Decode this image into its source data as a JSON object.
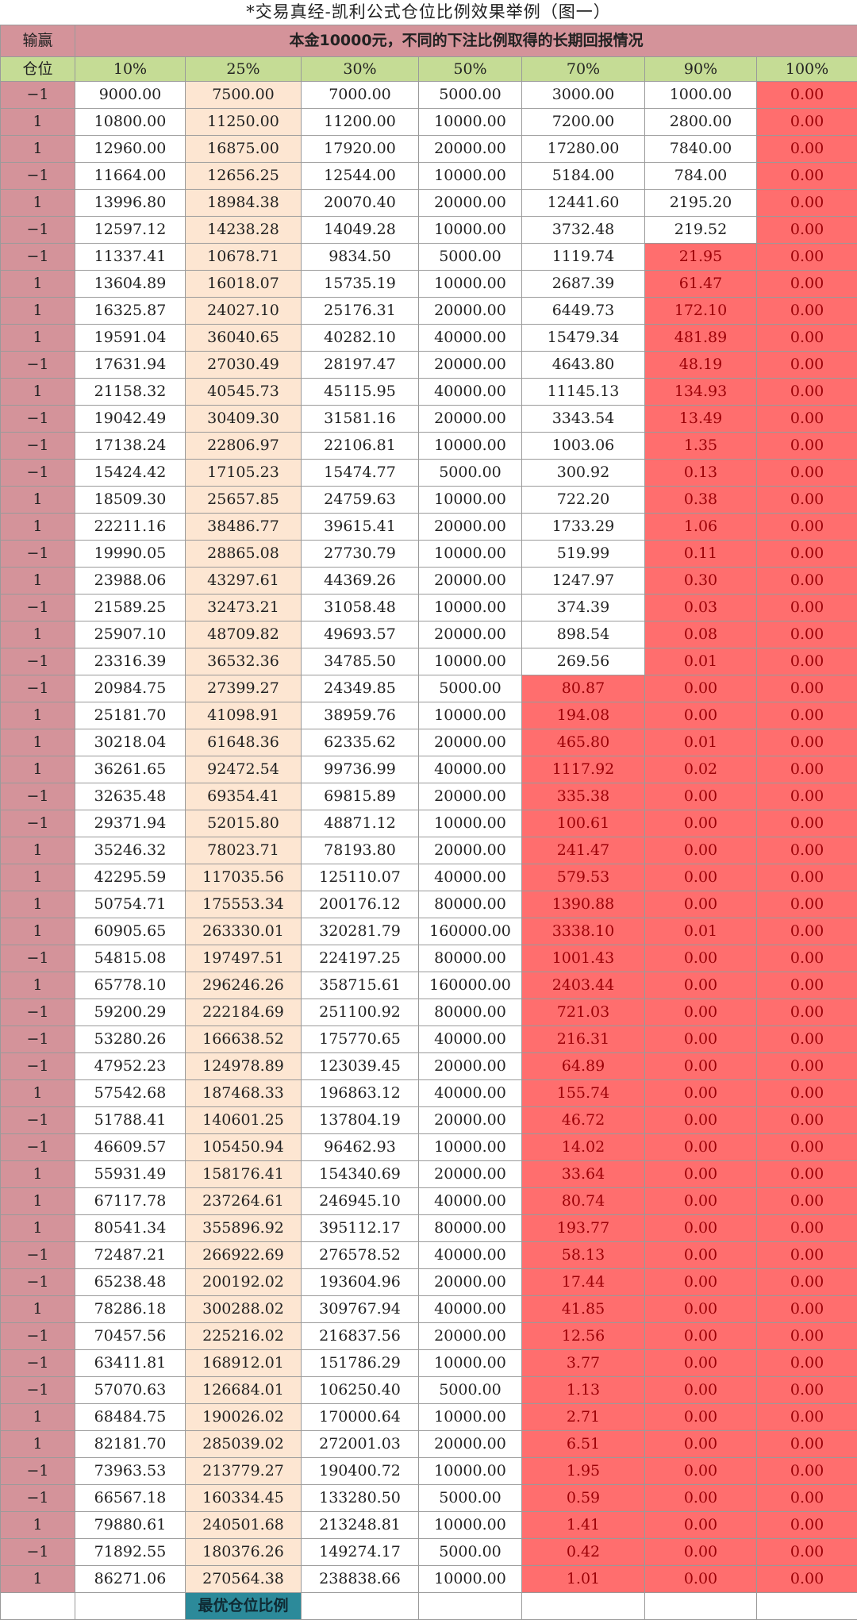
{
  "title": "*交易真经-凯利公式仓位比例效果举例（图一）",
  "header": {
    "corner_label": "输赢",
    "main_title": "本金10000元，不同的下注比例取得的长期回报情况"
  },
  "subheader": {
    "corner_label": "仓位",
    "pct_labels": [
      "10%",
      "25%",
      "30%",
      "50%",
      "70%",
      "90%",
      "100%"
    ]
  },
  "colors": {
    "win_loss_col": "#d4939a",
    "pct_header": "#c5dc95",
    "best_col": "#fde6d2",
    "loss_red": "#ff6e6e",
    "best_label": "#2c8a9a"
  },
  "footer": {
    "best_label": "最优仓位比例"
  },
  "rows": [
    [
      "−1",
      "9000.00",
      "7500.00",
      "7000.00",
      "5000.00",
      "3000.00",
      "1000.00",
      "0.00"
    ],
    [
      "1",
      "10800.00",
      "11250.00",
      "11200.00",
      "10000.00",
      "7200.00",
      "2800.00",
      "0.00"
    ],
    [
      "1",
      "12960.00",
      "16875.00",
      "17920.00",
      "20000.00",
      "17280.00",
      "7840.00",
      "0.00"
    ],
    [
      "−1",
      "11664.00",
      "12656.25",
      "12544.00",
      "10000.00",
      "5184.00",
      "784.00",
      "0.00"
    ],
    [
      "1",
      "13996.80",
      "18984.38",
      "20070.40",
      "20000.00",
      "12441.60",
      "2195.20",
      "0.00"
    ],
    [
      "−1",
      "12597.12",
      "14238.28",
      "14049.28",
      "10000.00",
      "3732.48",
      "219.52",
      "0.00"
    ],
    [
      "−1",
      "11337.41",
      "10678.71",
      "9834.50",
      "5000.00",
      "1119.74",
      "21.95",
      "0.00"
    ],
    [
      "1",
      "13604.89",
      "16018.07",
      "15735.19",
      "10000.00",
      "2687.39",
      "61.47",
      "0.00"
    ],
    [
      "1",
      "16325.87",
      "24027.10",
      "25176.31",
      "20000.00",
      "6449.73",
      "172.10",
      "0.00"
    ],
    [
      "1",
      "19591.04",
      "36040.65",
      "40282.10",
      "40000.00",
      "15479.34",
      "481.89",
      "0.00"
    ],
    [
      "−1",
      "17631.94",
      "27030.49",
      "28197.47",
      "20000.00",
      "4643.80",
      "48.19",
      "0.00"
    ],
    [
      "1",
      "21158.32",
      "40545.73",
      "45115.95",
      "40000.00",
      "11145.13",
      "134.93",
      "0.00"
    ],
    [
      "−1",
      "19042.49",
      "30409.30",
      "31581.16",
      "20000.00",
      "3343.54",
      "13.49",
      "0.00"
    ],
    [
      "−1",
      "17138.24",
      "22806.97",
      "22106.81",
      "10000.00",
      "1003.06",
      "1.35",
      "0.00"
    ],
    [
      "−1",
      "15424.42",
      "17105.23",
      "15474.77",
      "5000.00",
      "300.92",
      "0.13",
      "0.00"
    ],
    [
      "1",
      "18509.30",
      "25657.85",
      "24759.63",
      "10000.00",
      "722.20",
      "0.38",
      "0.00"
    ],
    [
      "1",
      "22211.16",
      "38486.77",
      "39615.41",
      "20000.00",
      "1733.29",
      "1.06",
      "0.00"
    ],
    [
      "−1",
      "19990.05",
      "28865.08",
      "27730.79",
      "10000.00",
      "519.99",
      "0.11",
      "0.00"
    ],
    [
      "1",
      "23988.06",
      "43297.61",
      "44369.26",
      "20000.00",
      "1247.97",
      "0.30",
      "0.00"
    ],
    [
      "−1",
      "21589.25",
      "32473.21",
      "31058.48",
      "10000.00",
      "374.39",
      "0.03",
      "0.00"
    ],
    [
      "1",
      "25907.10",
      "48709.82",
      "49693.57",
      "20000.00",
      "898.54",
      "0.08",
      "0.00"
    ],
    [
      "−1",
      "23316.39",
      "36532.36",
      "34785.50",
      "10000.00",
      "269.56",
      "0.01",
      "0.00"
    ],
    [
      "−1",
      "20984.75",
      "27399.27",
      "24349.85",
      "5000.00",
      "80.87",
      "0.00",
      "0.00"
    ],
    [
      "1",
      "25181.70",
      "41098.91",
      "38959.76",
      "10000.00",
      "194.08",
      "0.00",
      "0.00"
    ],
    [
      "1",
      "30218.04",
      "61648.36",
      "62335.62",
      "20000.00",
      "465.80",
      "0.01",
      "0.00"
    ],
    [
      "1",
      "36261.65",
      "92472.54",
      "99736.99",
      "40000.00",
      "1117.92",
      "0.02",
      "0.00"
    ],
    [
      "−1",
      "32635.48",
      "69354.41",
      "69815.89",
      "20000.00",
      "335.38",
      "0.00",
      "0.00"
    ],
    [
      "−1",
      "29371.94",
      "52015.80",
      "48871.12",
      "10000.00",
      "100.61",
      "0.00",
      "0.00"
    ],
    [
      "1",
      "35246.32",
      "78023.71",
      "78193.80",
      "20000.00",
      "241.47",
      "0.00",
      "0.00"
    ],
    [
      "1",
      "42295.59",
      "117035.56",
      "125110.07",
      "40000.00",
      "579.53",
      "0.00",
      "0.00"
    ],
    [
      "1",
      "50754.71",
      "175553.34",
      "200176.12",
      "80000.00",
      "1390.88",
      "0.00",
      "0.00"
    ],
    [
      "1",
      "60905.65",
      "263330.01",
      "320281.79",
      "160000.00",
      "3338.10",
      "0.01",
      "0.00"
    ],
    [
      "−1",
      "54815.08",
      "197497.51",
      "224197.25",
      "80000.00",
      "1001.43",
      "0.00",
      "0.00"
    ],
    [
      "1",
      "65778.10",
      "296246.26",
      "358715.61",
      "160000.00",
      "2403.44",
      "0.00",
      "0.00"
    ],
    [
      "−1",
      "59200.29",
      "222184.69",
      "251100.92",
      "80000.00",
      "721.03",
      "0.00",
      "0.00"
    ],
    [
      "−1",
      "53280.26",
      "166638.52",
      "175770.65",
      "40000.00",
      "216.31",
      "0.00",
      "0.00"
    ],
    [
      "−1",
      "47952.23",
      "124978.89",
      "123039.45",
      "20000.00",
      "64.89",
      "0.00",
      "0.00"
    ],
    [
      "1",
      "57542.68",
      "187468.33",
      "196863.12",
      "40000.00",
      "155.74",
      "0.00",
      "0.00"
    ],
    [
      "−1",
      "51788.41",
      "140601.25",
      "137804.19",
      "20000.00",
      "46.72",
      "0.00",
      "0.00"
    ],
    [
      "−1",
      "46609.57",
      "105450.94",
      "96462.93",
      "10000.00",
      "14.02",
      "0.00",
      "0.00"
    ],
    [
      "1",
      "55931.49",
      "158176.41",
      "154340.69",
      "20000.00",
      "33.64",
      "0.00",
      "0.00"
    ],
    [
      "1",
      "67117.78",
      "237264.61",
      "246945.10",
      "40000.00",
      "80.74",
      "0.00",
      "0.00"
    ],
    [
      "1",
      "80541.34",
      "355896.92",
      "395112.17",
      "80000.00",
      "193.77",
      "0.00",
      "0.00"
    ],
    [
      "−1",
      "72487.21",
      "266922.69",
      "276578.52",
      "40000.00",
      "58.13",
      "0.00",
      "0.00"
    ],
    [
      "−1",
      "65238.48",
      "200192.02",
      "193604.96",
      "20000.00",
      "17.44",
      "0.00",
      "0.00"
    ],
    [
      "1",
      "78286.18",
      "300288.02",
      "309767.94",
      "40000.00",
      "41.85",
      "0.00",
      "0.00"
    ],
    [
      "−1",
      "70457.56",
      "225216.02",
      "216837.56",
      "20000.00",
      "12.56",
      "0.00",
      "0.00"
    ],
    [
      "−1",
      "63411.81",
      "168912.01",
      "151786.29",
      "10000.00",
      "3.77",
      "0.00",
      "0.00"
    ],
    [
      "−1",
      "57070.63",
      "126684.01",
      "106250.40",
      "5000.00",
      "1.13",
      "0.00",
      "0.00"
    ],
    [
      "1",
      "68484.75",
      "190026.02",
      "170000.64",
      "10000.00",
      "2.71",
      "0.00",
      "0.00"
    ],
    [
      "1",
      "82181.70",
      "285039.02",
      "272001.03",
      "20000.00",
      "6.51",
      "0.00",
      "0.00"
    ],
    [
      "−1",
      "73963.53",
      "213779.27",
      "190400.72",
      "10000.00",
      "1.95",
      "0.00",
      "0.00"
    ],
    [
      "−1",
      "66567.18",
      "160334.45",
      "133280.50",
      "5000.00",
      "0.59",
      "0.00",
      "0.00"
    ],
    [
      "1",
      "79880.61",
      "240501.68",
      "213248.81",
      "10000.00",
      "1.41",
      "0.00",
      "0.00"
    ],
    [
      "−1",
      "71892.55",
      "180376.26",
      "149274.17",
      "5000.00",
      "0.42",
      "0.00",
      "0.00"
    ],
    [
      "1",
      "86271.06",
      "270564.38",
      "238838.66",
      "10000.00",
      "1.01",
      "0.00",
      "0.00"
    ]
  ]
}
